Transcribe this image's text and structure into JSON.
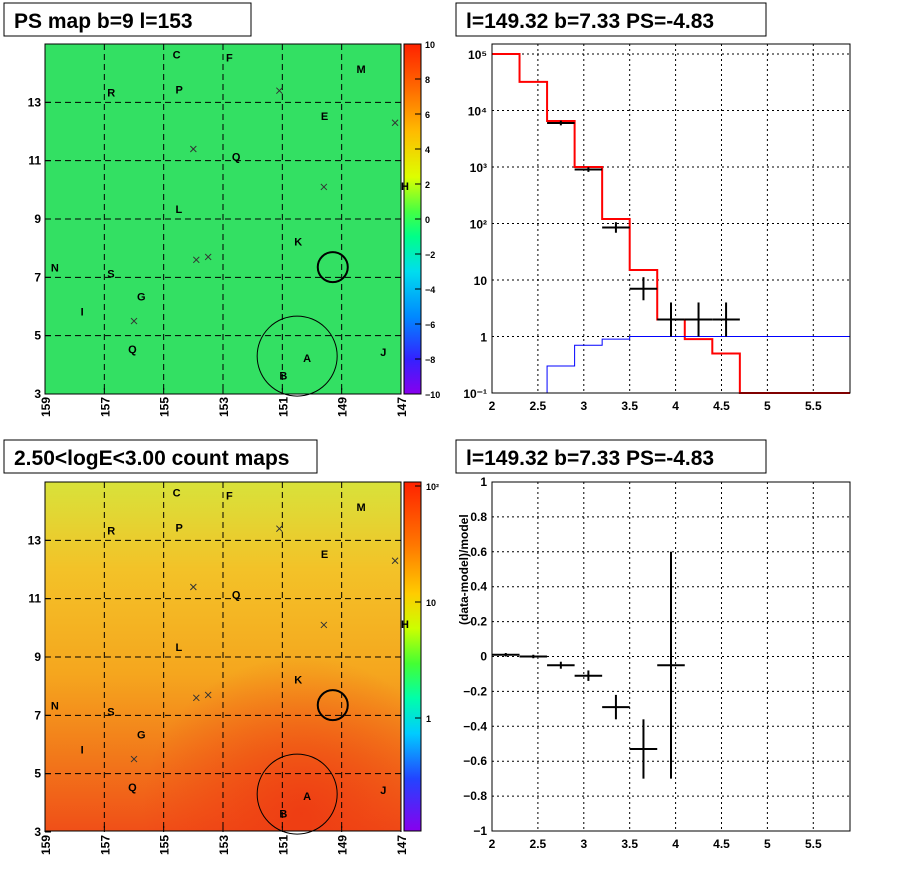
{
  "colors": {
    "map_bg_top": "#33e063",
    "count_bg": "#f2b01c",
    "model_red": "#ff0000",
    "model_blue": "#0000ff",
    "data_black": "#000000"
  },
  "labels": {
    "sky_sources": [
      "C",
      "F",
      "M",
      "R",
      "P",
      "E",
      "Q",
      "H",
      "L",
      "K",
      "N",
      "S",
      "G",
      "I",
      "Q",
      "A",
      "J",
      "B"
    ]
  },
  "chart_data": [
    {
      "type": "heatmap",
      "title": "PS map b=9 l=153",
      "x_ticks": [
        "159",
        "157",
        "155",
        "153",
        "151",
        "149",
        "147"
      ],
      "y_ticks": [
        "13",
        "11",
        "9",
        "7",
        "5",
        "3"
      ],
      "colorbar_ticks": [
        "10",
        "8",
        "6",
        "4",
        "2",
        "0",
        "−2",
        "−4",
        "−6",
        "−8",
        "−10"
      ],
      "x_range": [
        159,
        147
      ],
      "y_range": [
        3,
        15
      ],
      "colorbar_range": [
        -10,
        10
      ],
      "grid": true
    },
    {
      "type": "line",
      "title": "l=149.32 b=7.33 PS=-4.83",
      "log_y": true,
      "x_ticks": [
        "2",
        "2.5",
        "3",
        "3.5",
        "4",
        "4.5",
        "5",
        "5.5"
      ],
      "y_ticks": [
        "10⁵",
        "10⁴",
        "10³",
        "10²",
        "10",
        "1",
        "10⁻¹"
      ],
      "x_range": [
        2,
        5.9
      ],
      "y_range": [
        0.1,
        150000
      ],
      "grid": true,
      "series": [
        {
          "color": "#ff0000",
          "steps": [
            [
              2.0,
              2.3,
              100000
            ],
            [
              2.3,
              2.6,
              32000
            ],
            [
              2.6,
              2.9,
              6500
            ],
            [
              2.9,
              3.2,
              1000
            ],
            [
              3.2,
              3.5,
              120
            ],
            [
              3.5,
              3.8,
              15
            ],
            [
              3.8,
              4.1,
              2.0
            ],
            [
              4.1,
              4.4,
              0.9
            ],
            [
              4.4,
              4.7,
              0.5
            ],
            [
              4.7,
              5.9,
              0.1
            ]
          ]
        },
        {
          "color": "#0000ff",
          "steps": [
            [
              2.6,
              2.9,
              0.3
            ],
            [
              2.9,
              3.2,
              0.7
            ],
            [
              3.2,
              3.5,
              0.9
            ],
            [
              3.5,
              5.9,
              1.0
            ]
          ]
        },
        {
          "color": "#000000",
          "points": [
            [
              2.75,
              6000,
              0.15,
              0.05
            ],
            [
              3.05,
              900,
              0.15,
              0.05
            ],
            [
              3.35,
              85,
              0.15,
              0.12
            ],
            [
              3.65,
              7,
              0.15,
              0.3
            ],
            [
              3.95,
              2,
              0.15,
              0.5
            ],
            [
              4.25,
              2,
              0.15,
              0.5
            ],
            [
              4.55,
              2,
              0.15,
              0.5
            ]
          ]
        }
      ]
    },
    {
      "type": "heatmap",
      "title": "2.50<logE<3.00 count maps",
      "x_ticks": [
        "159",
        "157",
        "155",
        "153",
        "151",
        "149",
        "147"
      ],
      "y_ticks": [
        "13",
        "11",
        "9",
        "7",
        "5",
        "3"
      ],
      "colorbar_ticks": [
        "10²",
        "10",
        "1"
      ],
      "x_range": [
        159,
        147
      ],
      "y_range": [
        3,
        15
      ],
      "grid": true
    },
    {
      "type": "scatter",
      "title": "l=149.32 b=7.33 PS=-4.83",
      "ylabel": "(data-model)/model",
      "x_ticks": [
        "2",
        "2.5",
        "3",
        "3.5",
        "4",
        "4.5",
        "5",
        "5.5"
      ],
      "y_ticks": [
        "1",
        "0.8",
        "0.6",
        "0.4",
        "0.2",
        "0",
        "−0.2",
        "−0.4",
        "−0.6",
        "−0.8",
        "−1"
      ],
      "x_range": [
        2,
        5.9
      ],
      "y_range": [
        -1,
        1
      ],
      "grid": true,
      "points": [
        [
          2.15,
          0.01,
          0.15,
          0.01
        ],
        [
          2.45,
          0.0,
          0.15,
          0.01
        ],
        [
          2.75,
          -0.05,
          0.15,
          0.02
        ],
        [
          3.05,
          -0.11,
          0.15,
          0.03
        ],
        [
          3.35,
          -0.29,
          0.15,
          0.07
        ],
        [
          3.65,
          -0.53,
          0.15,
          0.17
        ],
        [
          3.95,
          -0.05,
          0.15,
          0.65
        ]
      ]
    }
  ]
}
